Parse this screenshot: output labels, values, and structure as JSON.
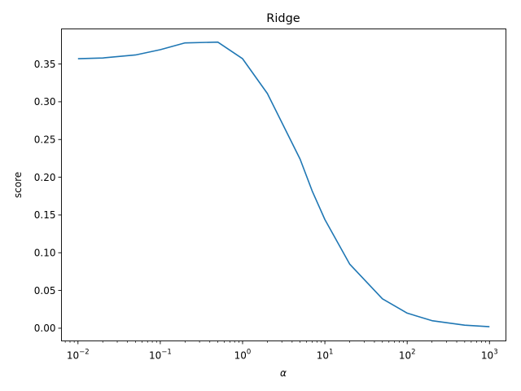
{
  "chart_data": {
    "type": "line",
    "title": "Ridge",
    "xlabel": "α",
    "ylabel": "score",
    "xscale": "log",
    "xlim": [
      0.0063,
      1585
    ],
    "ylim": [
      -0.0168,
      0.3965
    ],
    "grid": false,
    "x_ticks": [
      {
        "value": 0.01,
        "base": "10",
        "exp": "−2"
      },
      {
        "value": 0.1,
        "base": "10",
        "exp": "−1"
      },
      {
        "value": 1,
        "base": "10",
        "exp": "0"
      },
      {
        "value": 10,
        "base": "10",
        "exp": "1"
      },
      {
        "value": 100,
        "base": "10",
        "exp": "2"
      },
      {
        "value": 1000,
        "base": "10",
        "exp": "3"
      }
    ],
    "y_ticks": [
      {
        "value": 0.0,
        "label": "0.00"
      },
      {
        "value": 0.05,
        "label": "0.05"
      },
      {
        "value": 0.1,
        "label": "0.10"
      },
      {
        "value": 0.15,
        "label": "0.15"
      },
      {
        "value": 0.2,
        "label": "0.20"
      },
      {
        "value": 0.25,
        "label": "0.25"
      },
      {
        "value": 0.3,
        "label": "0.30"
      },
      {
        "value": 0.35,
        "label": "0.35"
      }
    ],
    "series": [
      {
        "color": "#1f77b4",
        "x": [
          0.01,
          0.02,
          0.05,
          0.1,
          0.2,
          0.5,
          1,
          2,
          5,
          7,
          10,
          20,
          50,
          100,
          200,
          500,
          1000
        ],
        "y": [
          0.357,
          0.358,
          0.362,
          0.369,
          0.378,
          0.379,
          0.357,
          0.311,
          0.224,
          0.182,
          0.144,
          0.085,
          0.039,
          0.02,
          0.01,
          0.004,
          0.002
        ]
      }
    ]
  }
}
